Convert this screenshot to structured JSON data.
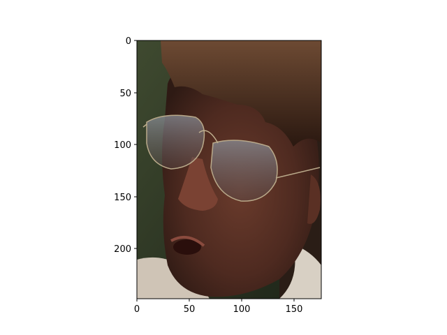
{
  "figure": {
    "image_description_icon": "photo-face-glasses-icon",
    "x_axis": {
      "range": [
        0,
        176
      ],
      "ticks": [
        "0",
        "50",
        "100",
        "150"
      ]
    },
    "y_axis": {
      "range": [
        0,
        248
      ],
      "inverted": true,
      "ticks": [
        "0",
        "50",
        "100",
        "150",
        "200"
      ]
    },
    "colors": {
      "frame": "#000000",
      "background": "#ffffff"
    }
  }
}
